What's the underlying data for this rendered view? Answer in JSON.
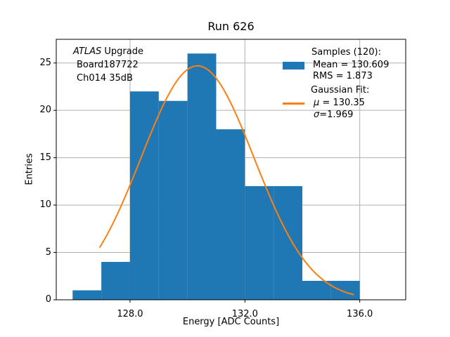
{
  "chart_data": {
    "type": "bar",
    "subtype": "histogram-with-gaussian-fit",
    "title": "Run 626",
    "xlabel": "Energy [ADC Counts]",
    "ylabel": "Entries",
    "bin_edges": [
      126,
      127,
      128,
      129,
      130,
      131,
      132,
      133,
      134,
      135,
      136
    ],
    "counts": [
      1,
      4,
      22,
      21,
      26,
      18,
      12,
      12,
      2,
      2
    ],
    "total_samples": 120,
    "xlim": [
      125.43,
      137.6
    ],
    "ylim": [
      0,
      27.5
    ],
    "xticks": [
      128.0,
      132.0,
      136.0
    ],
    "xtick_labels": [
      "128.0",
      "132.0",
      "136.0"
    ],
    "yticks": [
      0,
      5,
      10,
      15,
      20,
      25
    ],
    "ytick_labels": [
      "0",
      "5",
      "10",
      "15",
      "20",
      "25"
    ],
    "grid": true,
    "legend_position": "upper right",
    "colors": {
      "bar": "#1f77b4",
      "fit_line": "#ff7f0e",
      "grid": "#b0b0b0",
      "axis": "#000000",
      "background": "#ffffff"
    },
    "gaussian_fit": {
      "mu": 130.35,
      "sigma": 1.969,
      "amplitude": 24.7,
      "x_start": 126.95,
      "x_end": 135.78
    }
  },
  "annotation": {
    "line1_italic": "ATLAS",
    "line1_rest": " Upgrade",
    "line2": "Board187722",
    "line3": "Ch014 35dB"
  },
  "legend": {
    "samples_header": "Samples (120):",
    "mean_label": "Mean = 130.609",
    "rms_label": "RMS = 1.873",
    "fit_header": "Gaussian Fit:",
    "mu_symbol": "μ",
    "mu_value": " = 130.35",
    "sigma_symbol": "σ",
    "sigma_value": "=1.969"
  }
}
